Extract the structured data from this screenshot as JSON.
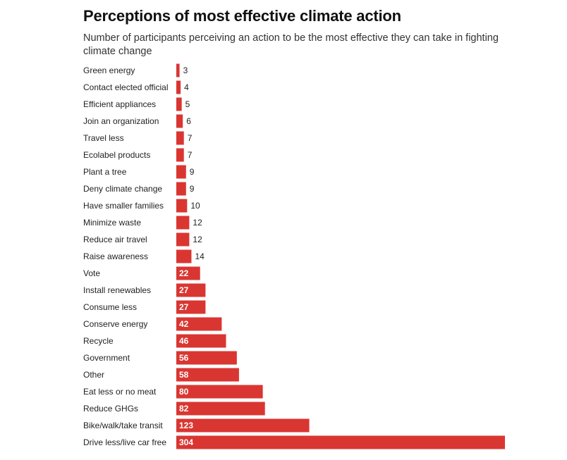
{
  "chart_data": {
    "type": "bar",
    "orientation": "horizontal",
    "title": "Perceptions of most effective climate action",
    "subtitle": "Number of participants perceiving an action to be the most effective they can take in fighting climate change",
    "bar_color": "#d93632",
    "xlim": [
      0,
      304
    ],
    "grid": false,
    "categories": [
      "Green energy",
      "Contact elected official",
      "Efficient appliances",
      "Join an organization",
      "Travel less",
      "Ecolabel products",
      "Plant a tree",
      "Deny climate change",
      "Have smaller families",
      "Minimize waste",
      "Reduce air travel",
      "Raise awareness",
      "Vote",
      "Install renewables",
      "Consume less",
      "Conserve energy",
      "Recycle",
      "Government",
      "Other",
      "Eat less or no meat",
      "Reduce GHGs",
      "Bike/walk/take transit",
      "Drive less/live car free"
    ],
    "values": [
      3,
      4,
      5,
      6,
      7,
      7,
      9,
      9,
      10,
      12,
      12,
      14,
      22,
      27,
      27,
      42,
      46,
      56,
      58,
      80,
      82,
      123,
      304
    ]
  }
}
